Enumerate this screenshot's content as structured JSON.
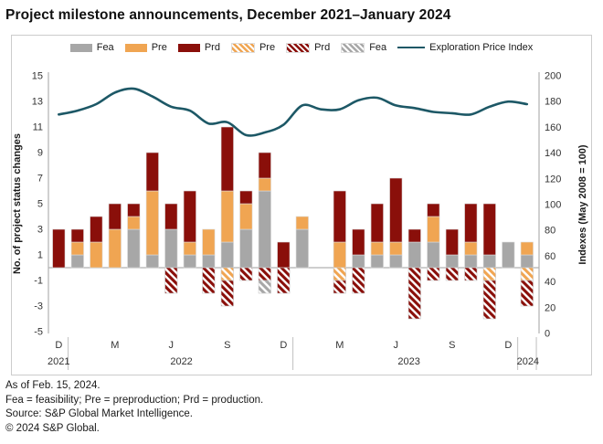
{
  "title": "Project milestone announcements, December 2021–January 2024",
  "legend": {
    "items": [
      {
        "label": "Fea",
        "style": "solid",
        "color": "#a7a7a7"
      },
      {
        "label": "Pre",
        "style": "solid",
        "color": "#f0a552"
      },
      {
        "label": "Prd",
        "style": "solid",
        "color": "#8a0f0a"
      },
      {
        "label": "Pre",
        "style": "hatch",
        "color": "#f0a552"
      },
      {
        "label": "Prd",
        "style": "hatch",
        "color": "#8a0f0a"
      },
      {
        "label": "Fea",
        "style": "hatch",
        "color": "#a7a7a7"
      },
      {
        "label": "Exploration Price Index",
        "style": "line",
        "color": "#1d5866"
      }
    ]
  },
  "colors": {
    "fea": "#a7a7a7",
    "pre": "#f0a552",
    "prd": "#8a0f0a",
    "line": "#1d5866",
    "axis": "#b0b0b0",
    "divider": "#c9c9c9",
    "panel_border": "#cccccc",
    "tick_text": "#333333",
    "text": "#1a1a1a"
  },
  "chart_data": {
    "type": "bar",
    "subtype": "stacked-bars-with-line-overlay",
    "categories": [
      "Dec 2021",
      "Jan 2022",
      "Feb 2022",
      "Mar 2022",
      "Apr 2022",
      "May 2022",
      "Jun 2022",
      "Jul 2022",
      "Aug 2022",
      "Sep 2022",
      "Oct 2022",
      "Nov 2022",
      "Dec 2022",
      "Jan 2023",
      "Feb 2023",
      "Mar 2023",
      "Apr 2023",
      "May 2023",
      "Jun 2023",
      "Jul 2023",
      "Aug 2023",
      "Sep 2023",
      "Oct 2023",
      "Nov 2023",
      "Dec 2023",
      "Jan 2024"
    ],
    "series": [
      {
        "name": "Fea",
        "style": "solid",
        "color_key": "fea",
        "values": [
          0,
          1,
          0,
          0,
          3,
          1,
          3,
          1,
          1,
          2,
          3,
          6,
          0,
          3,
          0,
          0,
          1,
          1,
          1,
          2,
          2,
          1,
          1,
          1,
          2,
          1
        ]
      },
      {
        "name": "Pre",
        "style": "solid",
        "color_key": "pre",
        "values": [
          0,
          1,
          2,
          3,
          1,
          5,
          0,
          1,
          2,
          4,
          2,
          1,
          0,
          1,
          0,
          2,
          0,
          1,
          1,
          0,
          2,
          0,
          1,
          0,
          0,
          1
        ]
      },
      {
        "name": "Prd",
        "style": "solid",
        "color_key": "prd",
        "values": [
          3,
          1,
          2,
          2,
          1,
          3,
          2,
          4,
          0,
          5,
          1,
          2,
          2,
          0,
          0,
          4,
          2,
          3,
          5,
          1,
          1,
          2,
          3,
          4,
          0,
          0
        ]
      },
      {
        "name": "Pre (reversal)",
        "style": "hatch",
        "color_key": "pre",
        "values": [
          0,
          0,
          0,
          0,
          0,
          0,
          0,
          0,
          0,
          -1,
          0,
          0,
          0,
          0,
          0,
          -1,
          0,
          0,
          0,
          0,
          0,
          0,
          0,
          -1,
          0,
          -1
        ]
      },
      {
        "name": "Prd (reversal)",
        "style": "hatch",
        "color_key": "prd",
        "values": [
          0,
          0,
          0,
          0,
          0,
          0,
          -2,
          0,
          -2,
          -2,
          -1,
          -1,
          -2,
          0,
          0,
          -1,
          -2,
          0,
          0,
          -4,
          -1,
          -1,
          -1,
          -3,
          0,
          -2
        ]
      },
      {
        "name": "Fea (reversal)",
        "style": "hatch",
        "color_key": "fea",
        "values": [
          0,
          0,
          0,
          0,
          0,
          0,
          0,
          0,
          0,
          0,
          0,
          -1,
          0,
          0,
          0,
          0,
          0,
          0,
          0,
          0,
          0,
          0,
          0,
          0,
          0,
          0
        ]
      }
    ],
    "line_series": {
      "name": "Exploration Price Index",
      "axis": "right",
      "color_key": "line",
      "values": [
        170,
        173,
        178,
        187,
        190,
        184,
        176,
        173,
        163,
        164,
        154,
        156,
        162,
        177,
        174,
        174,
        181,
        183,
        177,
        175,
        172,
        171,
        170,
        176,
        180,
        178
      ]
    },
    "y_left": {
      "label": "No. of project status changes",
      "min": -5,
      "max": 15,
      "ticks": [
        15,
        13,
        11,
        9,
        7,
        5,
        3,
        1,
        -1,
        -3,
        -5
      ]
    },
    "y_right": {
      "label": "Indexes (May 2008 = 100)",
      "min": 0,
      "max": 200,
      "ticks": [
        200,
        180,
        160,
        140,
        120,
        100,
        80,
        60,
        40,
        20,
        0
      ]
    },
    "x_tick_labels": [
      {
        "index": 0,
        "label": "D"
      },
      {
        "index": 3,
        "label": "M"
      },
      {
        "index": 6,
        "label": "J"
      },
      {
        "index": 9,
        "label": "S"
      },
      {
        "index": 12,
        "label": "D"
      },
      {
        "index": 15,
        "label": "M"
      },
      {
        "index": 18,
        "label": "J"
      },
      {
        "index": 21,
        "label": "S"
      },
      {
        "index": 24,
        "label": "D"
      }
    ],
    "x_year_labels": [
      {
        "pos": 0,
        "label": "2021"
      },
      {
        "pos": 6.55,
        "label": "2022"
      },
      {
        "pos": 18.7,
        "label": "2023"
      },
      {
        "pos": 25.05,
        "label": "2024"
      }
    ],
    "x_section_breaks_after": [
      0,
      12,
      24,
      25
    ],
    "legend_position": "top",
    "grid": false
  },
  "footer": {
    "as_of": "As of Feb. 15, 2024.",
    "definitions": "Fea = feasibility; Pre = preproduction; Prd = production.",
    "source": "Source: S&P Global Market Intelligence.",
    "copyright": "© 2024 S&P Global."
  }
}
